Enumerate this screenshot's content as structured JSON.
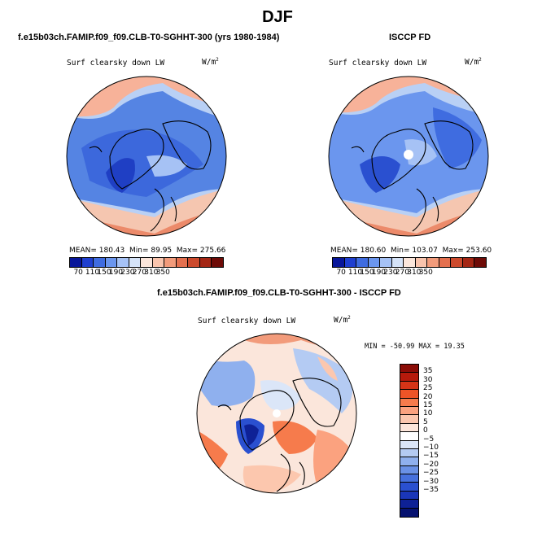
{
  "page": {
    "title": "DJF",
    "panel_left_title": "f.e15b03ch.FAMIP.f09_f09.CLB-T0-SGHHT-300 (yrs 1980-1984)",
    "panel_right_title": "ISCCP FD",
    "panel_diff_title": "f.e15b03ch.FAMIP.f09_f09.CLB-T0-SGHHT-300 - ISCCP FD"
  },
  "maps": {
    "variable": "Surf clearsky down LW",
    "units": "W/m",
    "units_exp": "2",
    "left_stats": {
      "mean_label": "MEAN=",
      "mean": "180.43",
      "min_label": "Min=",
      "min": "89.95",
      "max_label": "Max=",
      "max": "275.66"
    },
    "right_stats": {
      "mean_label": "MEAN=",
      "mean": "180.60",
      "min_label": "Min=",
      "min": "103.07",
      "max_label": "Max=",
      "max": "253.60"
    },
    "diff_stats": "MIN = -50.99 MAX =  19.35"
  },
  "colorbars": {
    "abs_labels": [
      "70",
      "110",
      "150",
      "190",
      "230",
      "270",
      "310",
      "350"
    ],
    "abs_colors": [
      "#08169a",
      "#1f3fd0",
      "#3f6ce0",
      "#6b96ee",
      "#a6c2f5",
      "#d5e3f8",
      "#fbe6db",
      "#f9c4ad",
      "#f29b7b",
      "#e4704f",
      "#cc4a2d",
      "#a42614",
      "#6e0b07"
    ],
    "diff_labels": [
      "35",
      "30",
      "25",
      "20",
      "15",
      "10",
      "5",
      "0",
      "−5",
      "−10",
      "−15",
      "−20",
      "−25",
      "−30",
      "−35"
    ],
    "diff_colors": [
      "#8b0c07",
      "#b61a0c",
      "#d63417",
      "#ee5427",
      "#f67b4c",
      "#fba27f",
      "#fcc7ae",
      "#fde6da",
      "#ffffff",
      "#dbe6f8",
      "#b4cbf3",
      "#8fb0ee",
      "#6a91e6",
      "#4670dd",
      "#2a50d0",
      "#1a36b8",
      "#0e2196",
      "#061270"
    ]
  }
}
